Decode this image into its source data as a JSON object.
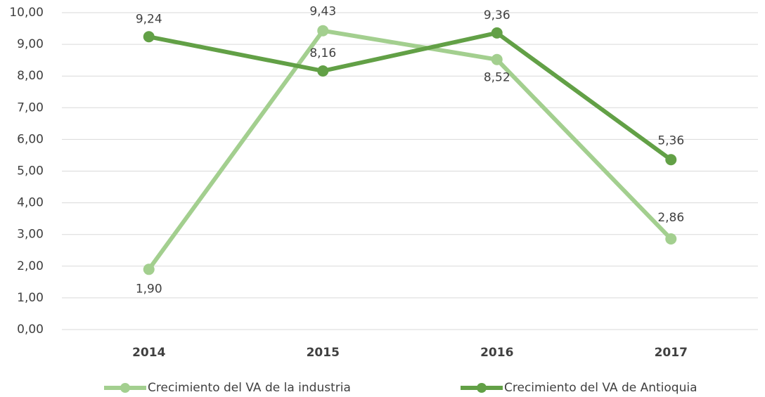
{
  "chart_data": {
    "type": "line",
    "categories": [
      "2014",
      "2015",
      "2016",
      "2017"
    ],
    "series": [
      {
        "name": "Crecimiento del VA de la industria",
        "color": "#a3cf8f",
        "values": [
          1.9,
          9.43,
          8.52,
          2.86
        ],
        "value_labels": [
          "1,90",
          "9,43",
          "8,52",
          "2,86"
        ]
      },
      {
        "name": "Crecimiento del VA de Antioquia",
        "color": "#62a046",
        "values": [
          9.24,
          8.16,
          9.36,
          5.36
        ],
        "value_labels": [
          "9,24",
          "8,16",
          "9,36",
          "5,36"
        ]
      }
    ],
    "ylim": [
      0,
      10
    ],
    "yticks": [
      {
        "value": 0,
        "label": "0,00"
      },
      {
        "value": 1,
        "label": "1,00"
      },
      {
        "value": 2,
        "label": "2,00"
      },
      {
        "value": 3,
        "label": "3,00"
      },
      {
        "value": 4,
        "label": "4,00"
      },
      {
        "value": 5,
        "label": "5,00"
      },
      {
        "value": 6,
        "label": "6,00"
      },
      {
        "value": 7,
        "label": "7,00"
      },
      {
        "value": 8,
        "label": "8,00"
      },
      {
        "value": 9,
        "label": "9,00"
      },
      {
        "value": 10,
        "label": "10,00"
      }
    ],
    "grid": true,
    "legend": "bottom"
  }
}
